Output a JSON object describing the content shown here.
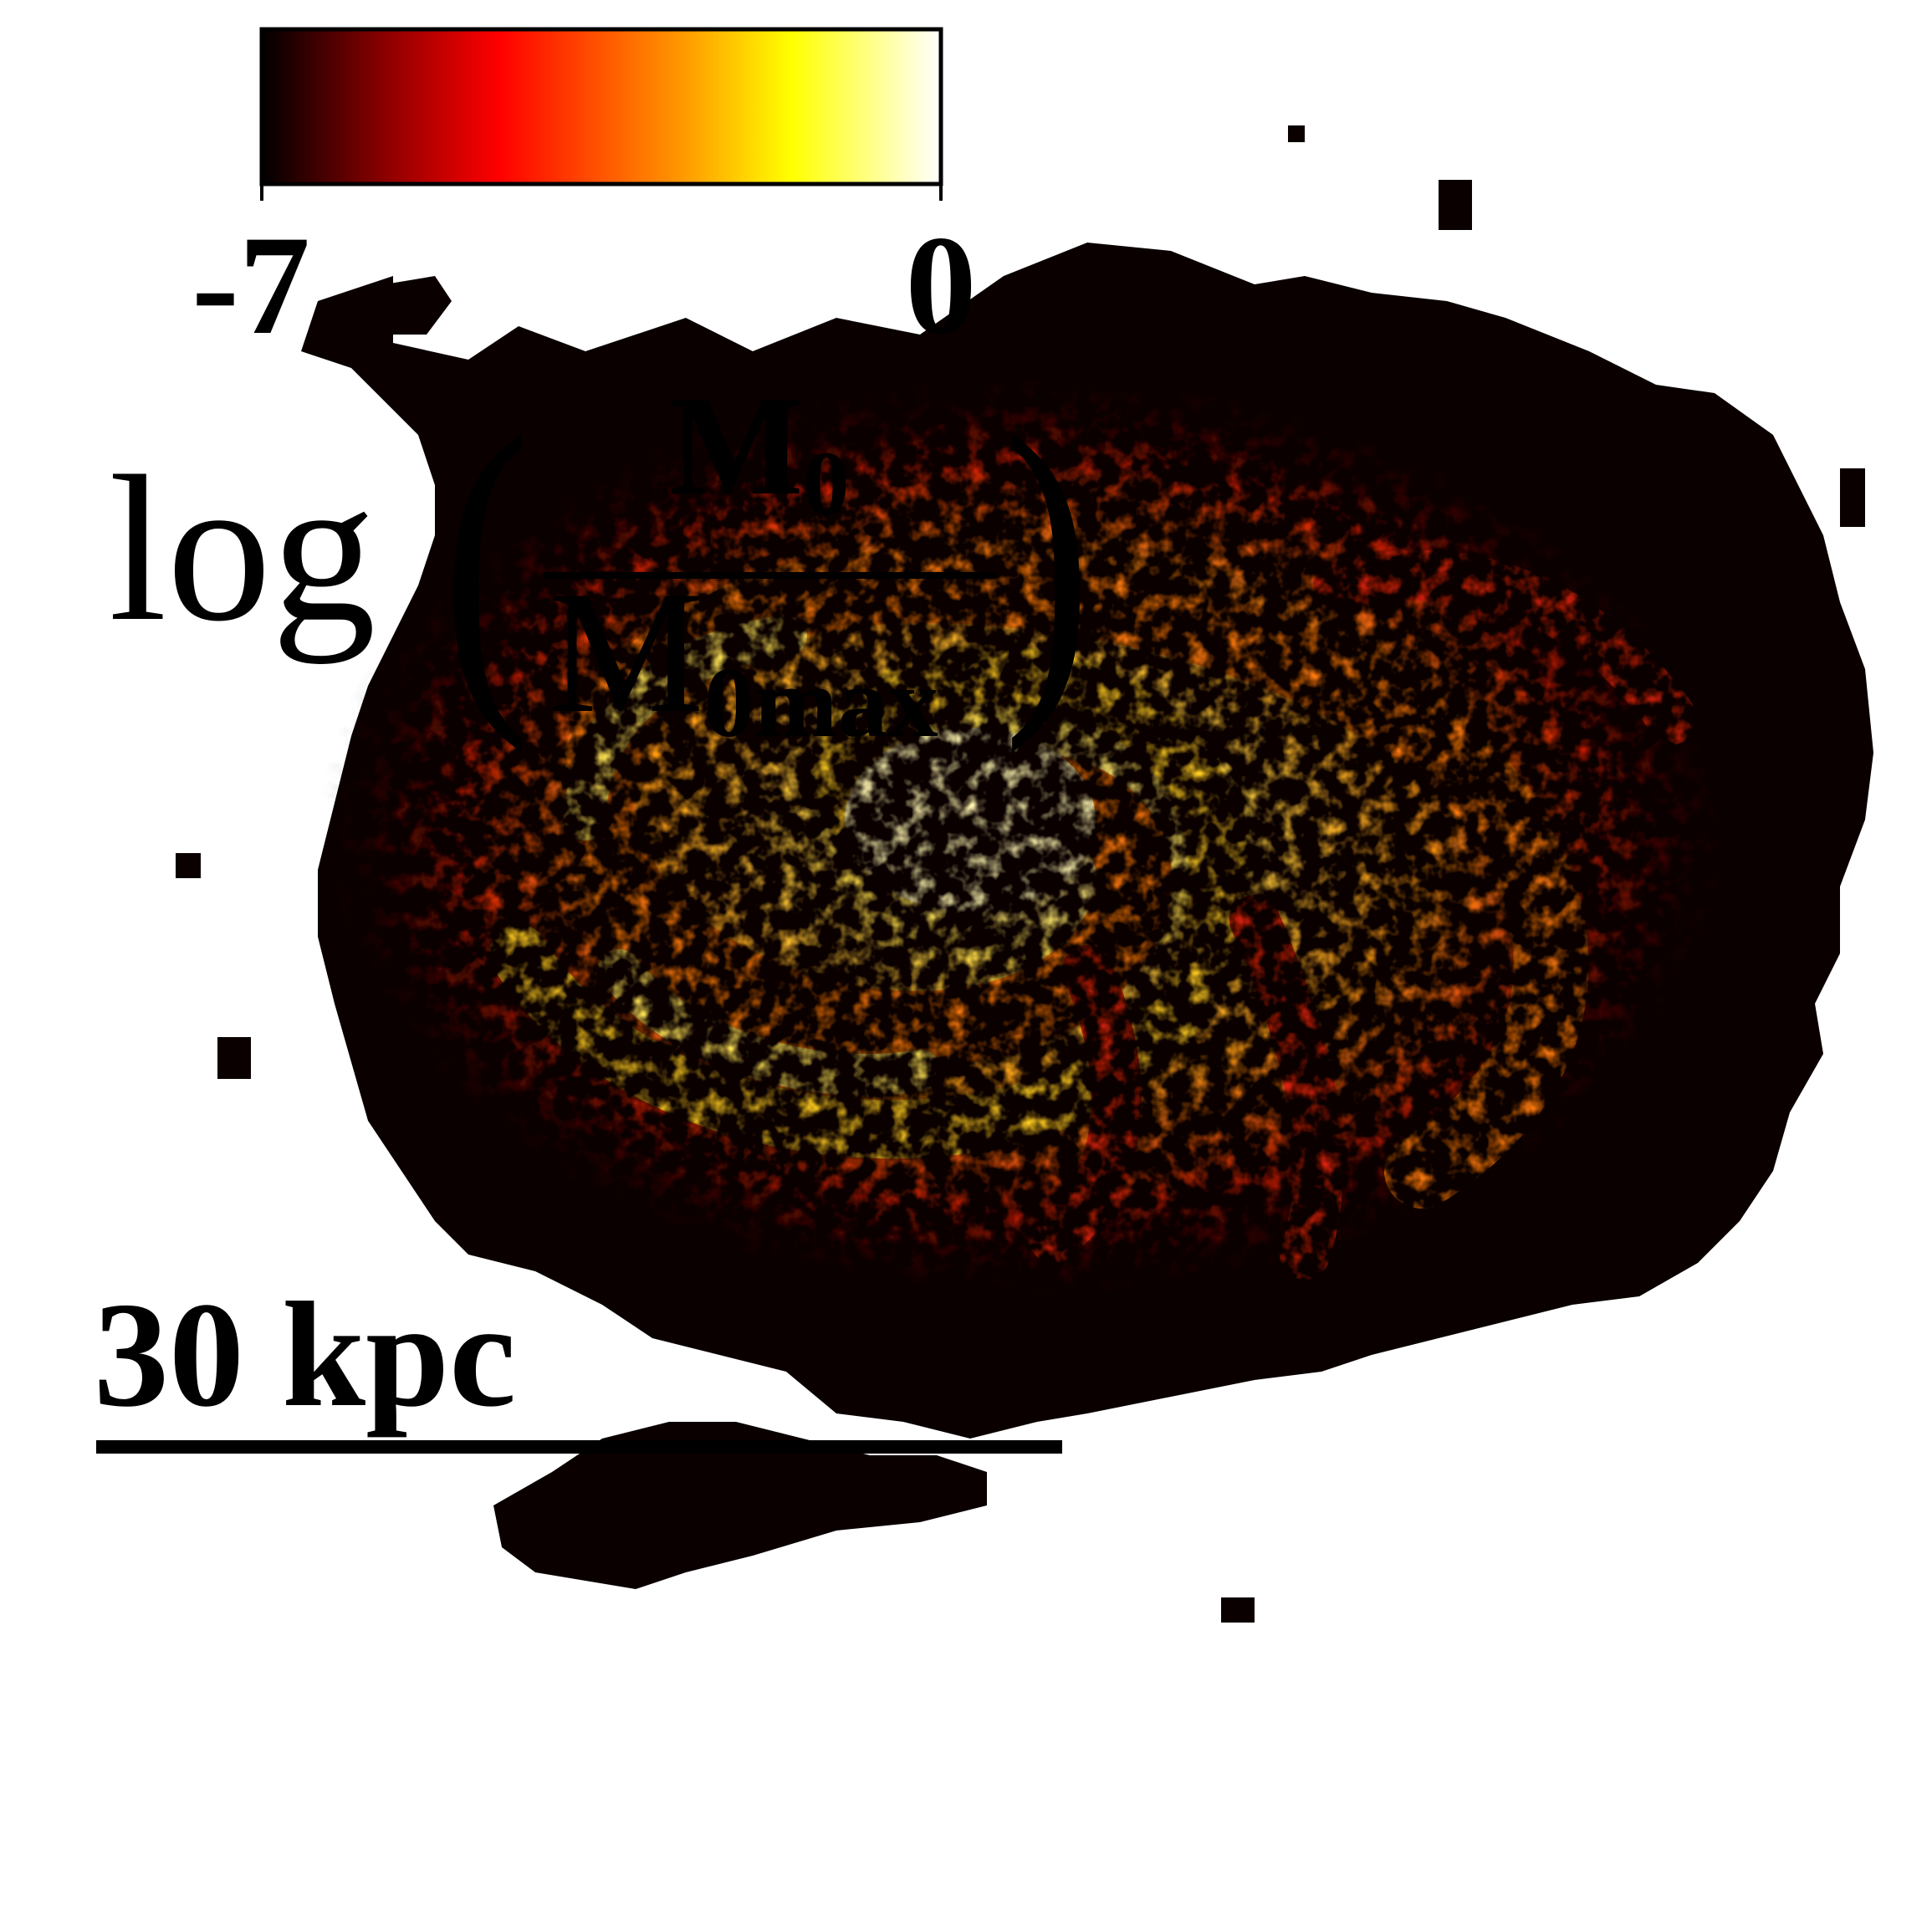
{
  "colorbar": {
    "min_label": "-7",
    "max_label": "0",
    "min_value": -7,
    "max_value": 0,
    "stops": [
      "#000000",
      "#8a0000",
      "#ff0000",
      "#ff9900",
      "#ffff00",
      "#ffffff"
    ]
  },
  "quantity_label": {
    "prefix": "log",
    "numerator": "M",
    "numerator_sub": "0",
    "denominator": "M",
    "denominator_sub": "0max"
  },
  "scale_bar": {
    "label": "30 kpc"
  },
  "map": {
    "background_color": "#0a0000",
    "arm_color_mid": "#e0220a",
    "arm_color_high": "#ffd21a",
    "core_color": "#fff6b0"
  }
}
